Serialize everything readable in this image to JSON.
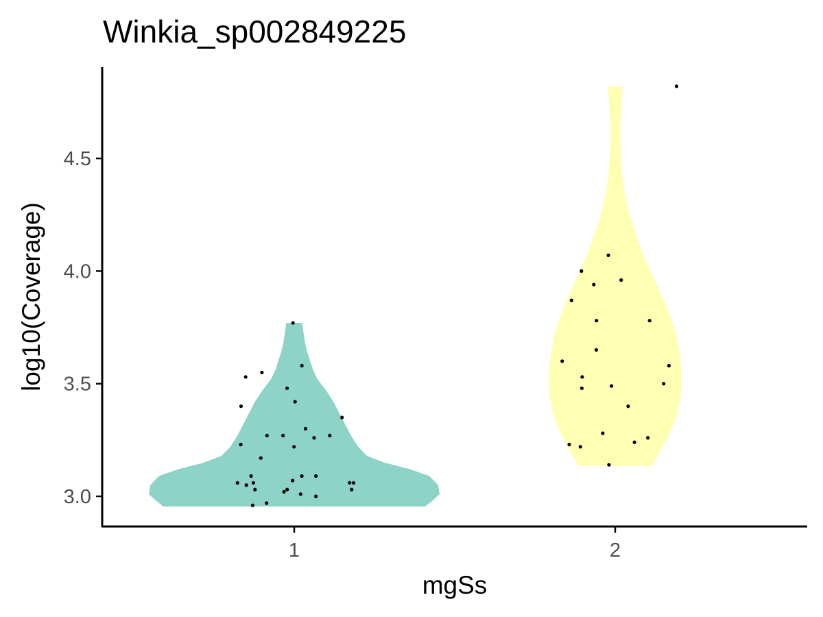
{
  "chart_data": {
    "type": "violin",
    "title": "Winkia_sp002849225",
    "xlabel": "mgSs",
    "ylabel": "log10(Coverage)",
    "categories": [
      "1",
      "2"
    ],
    "ylim": [
      2.87,
      4.85
    ],
    "yticks": [
      3.0,
      3.5,
      4.0,
      4.5
    ],
    "ytick_labels": [
      "3.0",
      "3.5",
      "4.0",
      "4.5"
    ],
    "grid": false,
    "legend": "none",
    "groups": [
      {
        "category": "1",
        "color": "#8dd3c7",
        "range": [
          2.955,
          3.77
        ],
        "density": [
          [
            2.955,
            0.9
          ],
          [
            2.98,
            0.95
          ],
          [
            3.01,
            1.0
          ],
          [
            3.05,
            0.99
          ],
          [
            3.09,
            0.93
          ],
          [
            3.12,
            0.8
          ],
          [
            3.15,
            0.62
          ],
          [
            3.18,
            0.5
          ],
          [
            3.22,
            0.44
          ],
          [
            3.27,
            0.39
          ],
          [
            3.32,
            0.35
          ],
          [
            3.37,
            0.31
          ],
          [
            3.42,
            0.27
          ],
          [
            3.47,
            0.22
          ],
          [
            3.52,
            0.16
          ],
          [
            3.56,
            0.13
          ],
          [
            3.6,
            0.11
          ],
          [
            3.64,
            0.09
          ],
          [
            3.68,
            0.075
          ],
          [
            3.72,
            0.065
          ],
          [
            3.77,
            0.055
          ]
        ],
        "points": [
          3.77,
          3.58,
          3.53,
          3.55,
          3.48,
          3.42,
          3.4,
          3.35,
          3.3,
          3.27,
          3.27,
          3.27,
          3.26,
          3.23,
          3.22,
          3.17,
          3.09,
          3.09,
          3.09,
          3.07,
          3.06,
          3.06,
          3.06,
          3.06,
          3.05,
          3.03,
          3.03,
          3.03,
          3.02,
          3.01,
          3.0,
          2.97,
          2.96
        ]
      },
      {
        "category": "2",
        "color": "#ffffb3",
        "range": [
          3.135,
          4.82
        ],
        "density": [
          [
            3.135,
            0.55
          ],
          [
            3.2,
            0.68
          ],
          [
            3.28,
            0.82
          ],
          [
            3.36,
            0.93
          ],
          [
            3.45,
            0.99
          ],
          [
            3.52,
            1.0
          ],
          [
            3.58,
            0.99
          ],
          [
            3.65,
            0.96
          ],
          [
            3.72,
            0.91
          ],
          [
            3.79,
            0.84
          ],
          [
            3.86,
            0.75
          ],
          [
            3.93,
            0.64
          ],
          [
            4.0,
            0.53
          ],
          [
            4.07,
            0.43
          ],
          [
            4.14,
            0.34
          ],
          [
            4.21,
            0.26
          ],
          [
            4.28,
            0.19
          ],
          [
            4.35,
            0.14
          ],
          [
            4.42,
            0.105
          ],
          [
            4.5,
            0.085
          ],
          [
            4.58,
            0.075
          ],
          [
            4.66,
            0.075
          ],
          [
            4.74,
            0.09
          ],
          [
            4.82,
            0.11
          ]
        ],
        "points": [
          4.82,
          4.07,
          4.0,
          3.96,
          3.94,
          3.87,
          3.78,
          3.78,
          3.65,
          3.6,
          3.58,
          3.53,
          3.5,
          3.49,
          3.48,
          3.4,
          3.28,
          3.26,
          3.24,
          3.23,
          3.22,
          3.14
        ]
      }
    ]
  }
}
